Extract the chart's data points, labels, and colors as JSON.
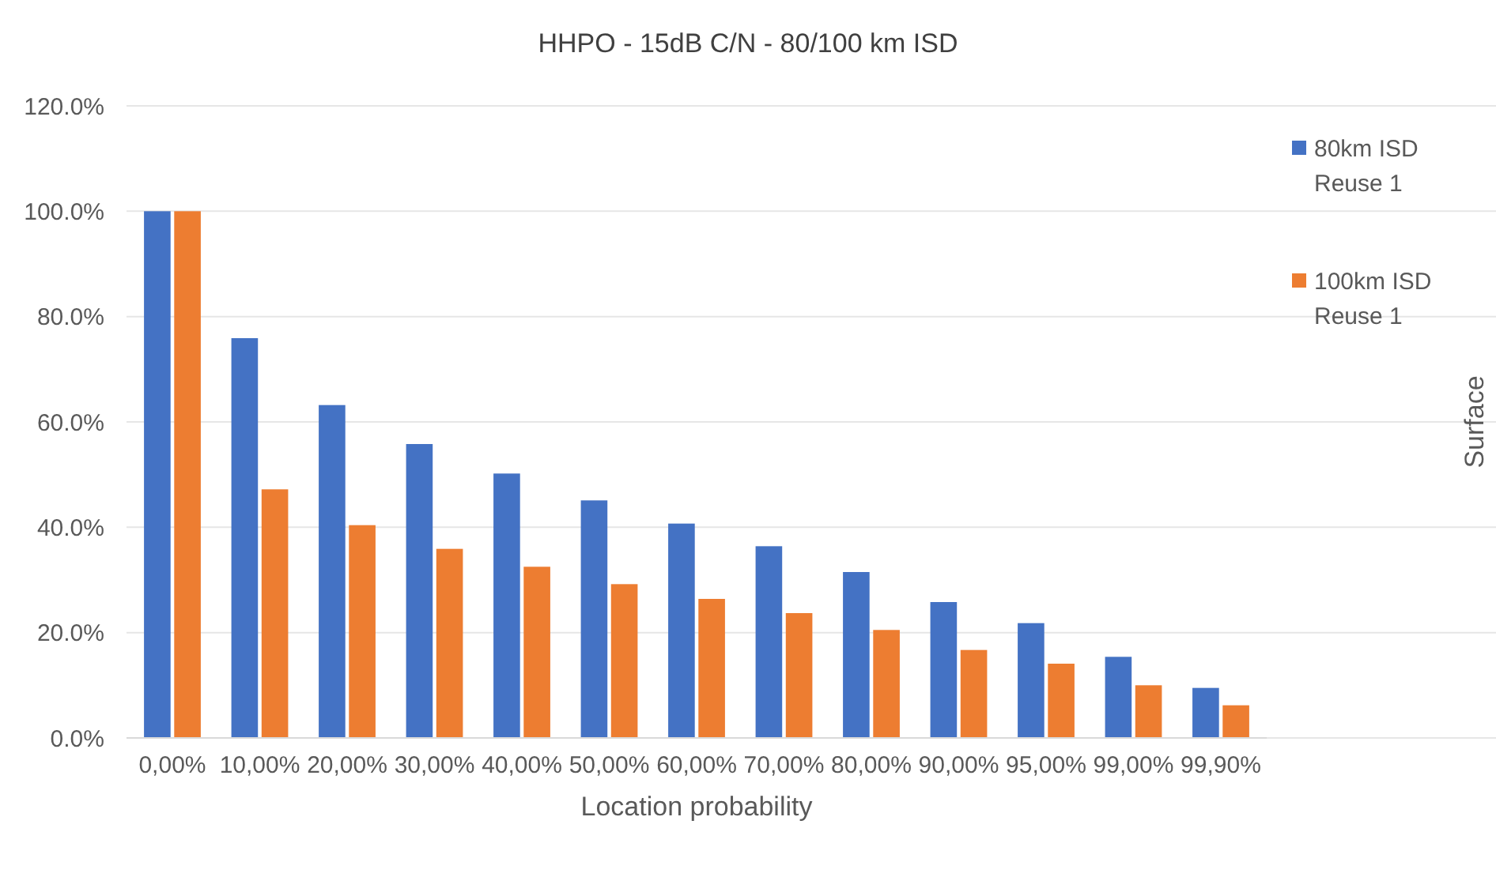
{
  "chart_data": {
    "type": "bar",
    "title": "HHPO - 15dB C/N - 80/100 km ISD",
    "xlabel": "Location probability",
    "annotations": [
      "Surface"
    ],
    "categories": [
      "0,00%",
      "10,00%",
      "20,00%",
      "30,00%",
      "40,00%",
      "50,00%",
      "60,00%",
      "70,00%",
      "80,00%",
      "90,00%",
      "95,00%",
      "99,00%",
      "99,90%"
    ],
    "series": [
      {
        "name": "80km ISD Reuse 1",
        "color": "#4472c4",
        "values": [
          100,
          75.9,
          63.2,
          55.8,
          50.2,
          45.1,
          40.7,
          36.4,
          31.5,
          25.8,
          21.8,
          15.4,
          9.5
        ]
      },
      {
        "name": "100km ISD Reuse 1",
        "color": "#ed7d31",
        "values": [
          100,
          47.2,
          40.4,
          35.9,
          32.5,
          29.2,
          26.4,
          23.7,
          20.5,
          16.7,
          14.1,
          10.0,
          6.2
        ]
      }
    ],
    "ylim": [
      0,
      120
    ],
    "yticks": [
      {
        "value": 0,
        "label": "0.0%"
      },
      {
        "value": 20,
        "label": "20.0%"
      },
      {
        "value": 40,
        "label": "40.0%"
      },
      {
        "value": 60,
        "label": "60.0%"
      },
      {
        "value": 80,
        "label": "80.0%"
      },
      {
        "value": 100,
        "label": "100.0%"
      },
      {
        "value": 120,
        "label": "120.0%"
      }
    ],
    "grid": "y",
    "legend": "top right"
  }
}
